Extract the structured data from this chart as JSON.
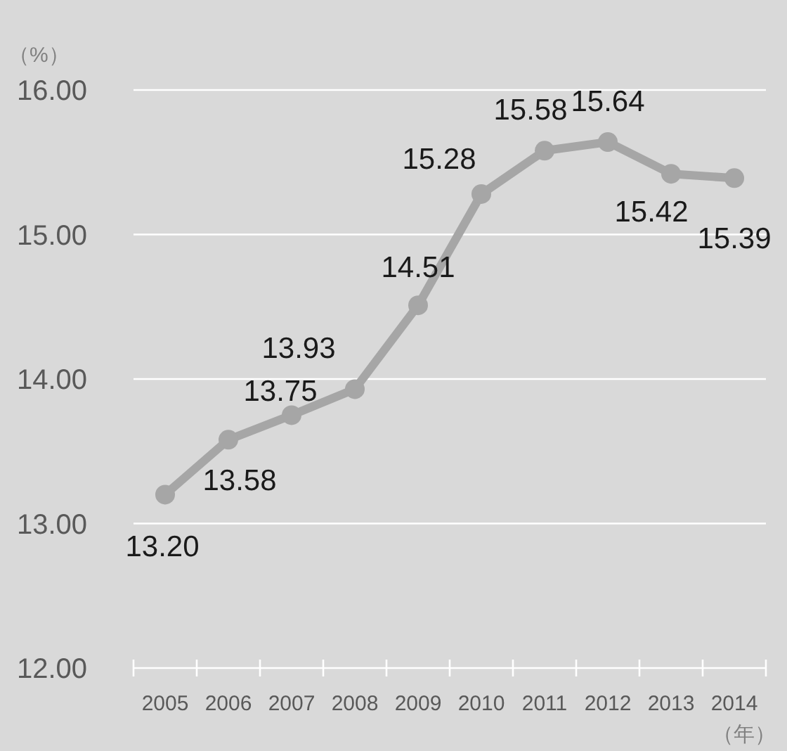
{
  "chart_data": {
    "type": "line",
    "ylabel": "（%）",
    "xlabel": "（年）",
    "categories": [
      "2005",
      "2006",
      "2007",
      "2008",
      "2009",
      "2010",
      "2011",
      "2012",
      "2013",
      "2014"
    ],
    "series": [
      {
        "color": "#a6a6a6",
        "values": [
          13.2,
          13.58,
          13.75,
          13.93,
          14.51,
          15.28,
          15.58,
          15.64,
          15.42,
          15.39
        ]
      }
    ],
    "ylim": [
      12,
      16
    ],
    "yticks": [
      {
        "value": 12,
        "label": "12.00"
      },
      {
        "value": 13,
        "label": "13.00"
      },
      {
        "value": 14,
        "label": "14.00"
      },
      {
        "value": 15,
        "label": "15.00"
      },
      {
        "value": 16,
        "label": "16.00"
      }
    ],
    "value_labels": [
      "13.20",
      "13.58",
      "13.75",
      "13.93",
      "14.51",
      "15.28",
      "15.58",
      "15.64",
      "15.42",
      "15.39"
    ],
    "grid": "y",
    "marker": "circle"
  }
}
